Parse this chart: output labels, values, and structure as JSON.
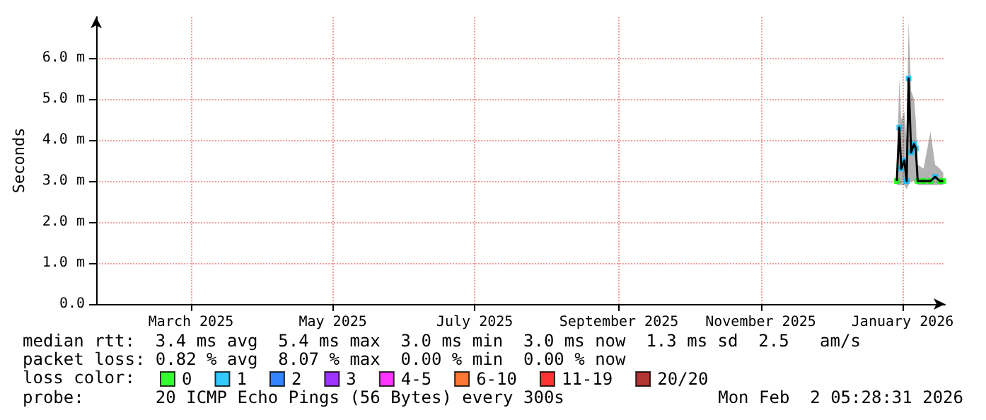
{
  "chart_data": {
    "type": "line",
    "ylabel": "Seconds",
    "legend_title": "loss color:",
    "legend": "bottom",
    "grid": true,
    "annotations": [
      "median rtt:  3.4 ms avg  5.4 ms max  3.0 ms min  3.0 ms now  1.3 ms sd  2.5   am/s",
      "packet loss: 0.82 % avg  8.07 % max  0.00 % min  0.00 % now",
      "probe:       20 ICMP Echo Pings (56 Bytes) every 300s",
      "Mon Feb  2 05:28:31 2026"
    ],
    "xlim": [
      "2025-02-02T05:28",
      "2026-02-02T05:28"
    ],
    "xticks": [
      {
        "value": "2025-03-15",
        "label": "March 2025"
      },
      {
        "value": "2025-05-15",
        "label": "May 2025"
      },
      {
        "value": "2025-07-15",
        "label": "July 2025"
      },
      {
        "value": "2025-09-15",
        "label": "September 2025"
      },
      {
        "value": "2025-11-15",
        "label": "November 2025"
      },
      {
        "value": "2026-01-15",
        "label": "January 2026"
      }
    ],
    "ylim": [
      0,
      7
    ],
    "yticks": [
      {
        "value": 0,
        "label": "0.0"
      },
      {
        "value": 1,
        "label": "1.0 m"
      },
      {
        "value": 2,
        "label": "2.0 m"
      },
      {
        "value": 3,
        "label": "3.0 m"
      },
      {
        "value": 4,
        "label": "4.0 m"
      },
      {
        "value": 5,
        "label": "5.0 m"
      },
      {
        "value": 6,
        "label": "6.0 m"
      }
    ],
    "x": [
      "2026-01-12T12:00",
      "2026-01-13T14:00",
      "2026-01-14T10:00",
      "2026-01-15T18:00",
      "2026-01-16T18:00",
      "2026-01-17T14:00",
      "2026-01-18T16:00",
      "2026-01-19T22:00",
      "2026-01-20T16:00",
      "2026-01-21T12:00",
      "2026-01-24",
      "2026-01-27",
      "2026-01-29",
      "2026-01-31",
      "2026-02-01T12:00"
    ],
    "series": [
      {
        "color": "#000000",
        "values": [
          3.0,
          4.3,
          3.3,
          3.5,
          3.0,
          5.5,
          3.7,
          3.9,
          3.8,
          3.0,
          3.0,
          3.0,
          3.1,
          3.0,
          3.0
        ],
        "lower": [
          2.9,
          2.9,
          2.9,
          2.9,
          2.8,
          2.9,
          3.0,
          3.0,
          3.0,
          2.9,
          2.9,
          2.9,
          2.9,
          2.9,
          2.9
        ],
        "upper": [
          3.2,
          5.5,
          4.5,
          4.7,
          4.0,
          6.9,
          5.2,
          5.0,
          4.5,
          3.4,
          3.3,
          4.2,
          3.4,
          3.3,
          3.2
        ]
      },
      {
        "type": "scatter",
        "name": "0",
        "color": "#00ff00",
        "values": [
          3.0,
          null,
          null,
          null,
          null,
          null,
          null,
          null,
          null,
          3.0,
          3.0,
          3.0,
          null,
          3.0,
          3.0
        ]
      },
      {
        "type": "scatter",
        "name": "1",
        "color": "#00bbff",
        "values": [
          null,
          4.3,
          3.3,
          3.5,
          3.0,
          5.5,
          3.7,
          3.9,
          3.8,
          null,
          null,
          null,
          3.1,
          null,
          null
        ]
      },
      {
        "type": "scatter",
        "name": "2",
        "color": "#0066ff",
        "values": [
          null,
          null,
          null,
          null,
          null,
          null,
          null,
          null,
          null,
          null,
          null,
          null,
          null,
          null,
          null
        ]
      },
      {
        "type": "scatter",
        "name": "3",
        "color": "#8800ff",
        "values": [
          null,
          null,
          null,
          null,
          null,
          null,
          null,
          null,
          null,
          null,
          null,
          null,
          null,
          null,
          null
        ]
      },
      {
        "type": "scatter",
        "name": "4-5",
        "color": "#ff00ff",
        "values": [
          null,
          null,
          null,
          null,
          null,
          null,
          null,
          null,
          null,
          null,
          null,
          null,
          null,
          null,
          null
        ]
      },
      {
        "type": "scatter",
        "name": "6-10",
        "color": "#ff5500",
        "values": [
          null,
          null,
          null,
          null,
          null,
          null,
          null,
          null,
          null,
          null,
          null,
          null,
          null,
          null,
          null
        ]
      },
      {
        "type": "scatter",
        "name": "11-19",
        "color": "#ff0000",
        "values": [
          null,
          null,
          null,
          null,
          null,
          null,
          null,
          null,
          null,
          null,
          null,
          null,
          null,
          null,
          null
        ]
      },
      {
        "type": "scatter",
        "name": "20/20",
        "color": "#a10000",
        "values": [
          null,
          null,
          null,
          null,
          null,
          null,
          null,
          null,
          null,
          null,
          null,
          null,
          null,
          null,
          null
        ]
      }
    ]
  }
}
